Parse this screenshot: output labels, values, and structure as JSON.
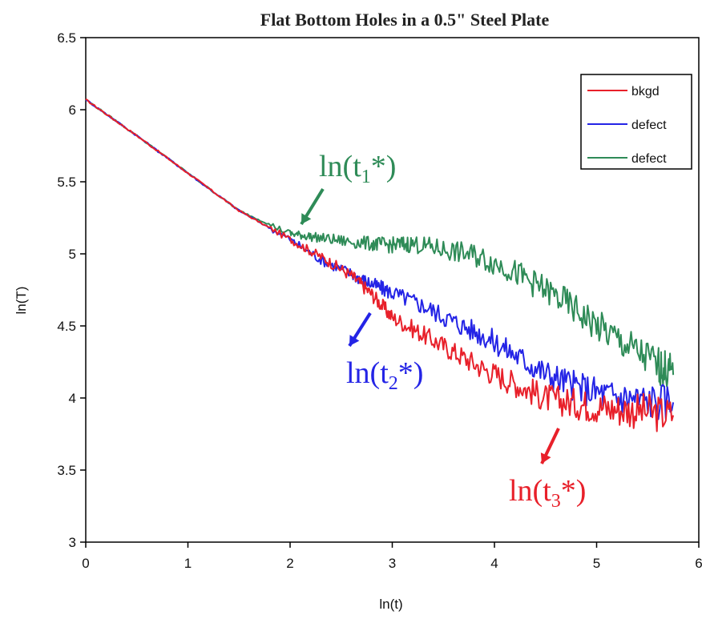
{
  "chart_data": {
    "type": "line",
    "title": "Flat Bottom Holes in a 0.5\" Steel Plate",
    "xlabel": "ln(t)",
    "ylabel": "ln(T)",
    "xlim": [
      0,
      6
    ],
    "ylim": [
      3,
      6.5
    ],
    "xticks": [
      "0",
      "1",
      "2",
      "3",
      "4",
      "5",
      "6"
    ],
    "yticks": [
      "3",
      "3.5",
      "4",
      "4.5",
      "5",
      "5.5",
      "6",
      "6.5"
    ],
    "legend_position": "top-right",
    "series": [
      {
        "name": "bkgd",
        "color": "#e8202a",
        "x": [
          0,
          0.5,
          1,
          1.5,
          2,
          2.3,
          2.6,
          2.8,
          3,
          3.3,
          3.6,
          3.9,
          4.2,
          4.5,
          4.8,
          5.1,
          5.4,
          5.75
        ],
        "y": [
          6.07,
          5.82,
          5.56,
          5.3,
          5.1,
          4.98,
          4.85,
          4.72,
          4.56,
          4.44,
          4.32,
          4.2,
          4.1,
          4.0,
          3.96,
          3.93,
          3.91,
          3.88
        ]
      },
      {
        "name": "defect",
        "color": "#2424e6",
        "x": [
          0,
          0.5,
          1,
          1.5,
          2,
          2.3,
          2.6,
          2.8,
          3,
          3.3,
          3.6,
          3.9,
          4.2,
          4.5,
          4.8,
          5.1,
          5.4,
          5.75
        ],
        "y": [
          6.07,
          5.82,
          5.56,
          5.3,
          5.1,
          4.96,
          4.86,
          4.79,
          4.73,
          4.64,
          4.53,
          4.43,
          4.3,
          4.17,
          4.08,
          4.02,
          3.99,
          3.97
        ]
      },
      {
        "name": "defect",
        "color": "#2e8b57",
        "x": [
          0,
          0.5,
          1,
          1.5,
          2,
          2.2,
          2.5,
          2.8,
          3,
          3.2,
          3.5,
          3.8,
          4.1,
          4.4,
          4.7,
          5,
          5.3,
          5.6,
          5.75
        ],
        "y": [
          6.07,
          5.82,
          5.56,
          5.3,
          5.14,
          5.12,
          5.09,
          5.07,
          5.06,
          5.07,
          5.03,
          4.99,
          4.91,
          4.79,
          4.66,
          4.5,
          4.36,
          4.23,
          4.16
        ]
      }
    ],
    "annotations": [
      {
        "text": "ln(t",
        "sub": "1",
        "suffix": "*)",
        "color": "#2e8b57",
        "x": 2.18,
        "y": 5.2
      },
      {
        "text": "ln(t",
        "sub": "2",
        "suffix": "*)",
        "color": "#2424e6",
        "x": 2.55,
        "y": 4.65
      },
      {
        "text": "ln(t",
        "sub": "3",
        "suffix": "*)",
        "color": "#e8202a",
        "x": 4.58,
        "y": 3.72
      }
    ]
  }
}
